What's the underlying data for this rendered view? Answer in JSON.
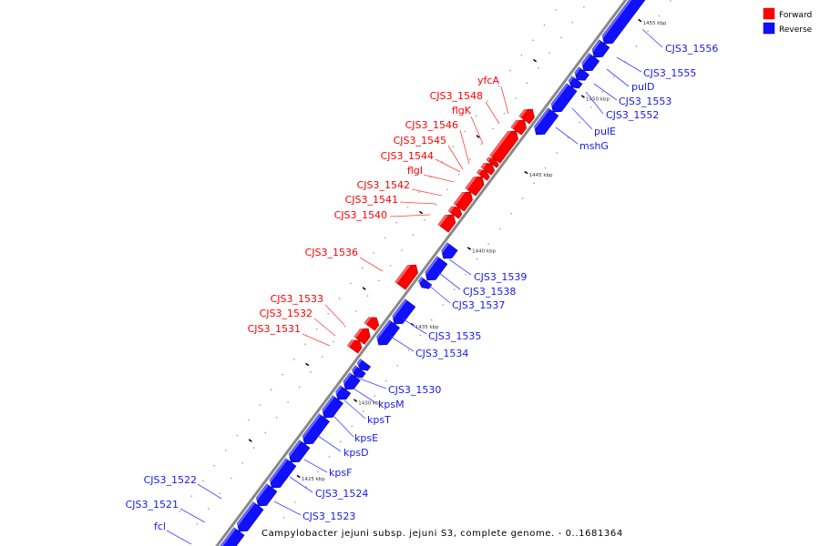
{
  "caption": "Campylobacter jejuni subsp. jejuni S3, complete genome. - 0..1681364",
  "legend": [
    {
      "label": "Forward",
      "color": "#ff0000"
    },
    {
      "label": "Reverse",
      "color": "#1010ff"
    }
  ],
  "ticks": [
    {
      "kbp": 1425,
      "label": "1425 kbp"
    },
    {
      "kbp": 1430,
      "label": "1430 kbp"
    },
    {
      "kbp": 1435,
      "label": "1435 kbp"
    },
    {
      "kbp": 1440,
      "label": "1440 kbp"
    },
    {
      "kbp": 1445,
      "label": "1445 kbp"
    },
    {
      "kbp": 1450,
      "label": "1450 kbp"
    },
    {
      "kbp": 1455,
      "label": "1455 kbp"
    }
  ],
  "genes": [
    {
      "name": "fcl",
      "strand": "reverse",
      "start": 1419.2,
      "end": 1420.81
    },
    {
      "name": "CJS3_1521",
      "strand": "reverse",
      "start": 1420.81,
      "end": 1422.49
    },
    {
      "name": "CJS3_1522",
      "strand": "reverse",
      "start": 1422.49,
      "end": 1423.68
    },
    {
      "name": "CJS3_1523",
      "strand": "reverse",
      "start": 1423.68,
      "end": 1425.36
    },
    {
      "name": "CJS3_1524",
      "strand": "reverse",
      "start": 1425.36,
      "end": 1426.56
    },
    {
      "name": "kpsF",
      "strand": "reverse",
      "start": 1426.56,
      "end": 1428.29
    },
    {
      "name": "kpsD",
      "strand": "reverse",
      "start": 1428.29,
      "end": 1429.49
    },
    {
      "name": "kpsE",
      "strand": "reverse",
      "start": 1429.49,
      "end": 1430.15
    },
    {
      "name": "kpsT",
      "strand": "reverse",
      "start": 1430.15,
      "end": 1430.99
    },
    {
      "name": "kpsM",
      "strand": "reverse",
      "start": 1430.99,
      "end": 1431.47
    },
    {
      "name": "CJS3_1530",
      "strand": "reverse",
      "start": 1431.47,
      "end": 1431.9
    },
    {
      "name": "CJS3_1531",
      "strand": "forward",
      "start": 1432.07,
      "end": 1432.66
    },
    {
      "name": "CJS3_1532",
      "strand": "forward",
      "start": 1432.66,
      "end": 1433.44
    },
    {
      "name": "CJS3_1533",
      "strand": "forward",
      "start": 1433.56,
      "end": 1434.16
    },
    {
      "name": "CJS3_1534",
      "strand": "reverse",
      "start": 1433.08,
      "end": 1434.46
    },
    {
      "name": "CJS3_1535",
      "strand": "reverse",
      "start": 1434.46,
      "end": 1435.84
    },
    {
      "name": "CJS3_1536",
      "strand": "forward",
      "start": 1436.26,
      "end": 1437.63
    },
    {
      "name": "CJS3_1537",
      "strand": "reverse",
      "start": 1436.86,
      "end": 1437.28
    },
    {
      "name": "CJS3_1538",
      "strand": "reverse",
      "start": 1437.34,
      "end": 1438.65
    },
    {
      "name": "CJS3_1539",
      "strand": "reverse",
      "start": 1438.77,
      "end": 1439.55
    },
    {
      "name": "CJS3_1540",
      "strand": "forward",
      "start": 1440.03,
      "end": 1440.93
    },
    {
      "name": "CJS3_1541",
      "strand": "forward",
      "start": 1440.93,
      "end": 1441.41
    },
    {
      "name": "CJS3_1542",
      "strand": "forward",
      "start": 1441.41,
      "end": 1442.43
    },
    {
      "name": "flgI",
      "strand": "forward",
      "start": 1442.43,
      "end": 1443.44
    },
    {
      "name": "CJS3_1544",
      "strand": "forward",
      "start": 1443.44,
      "end": 1443.8
    },
    {
      "name": "CJS3_1545",
      "strand": "forward",
      "start": 1443.8,
      "end": 1444.28
    },
    {
      "name": "CJS3_1546",
      "strand": "forward",
      "start": 1444.28,
      "end": 1444.58
    },
    {
      "name": "flgK",
      "strand": "forward",
      "start": 1444.58,
      "end": 1446.44
    },
    {
      "name": "CJS3_1548",
      "strand": "forward",
      "start": 1446.44,
      "end": 1447.16
    },
    {
      "name": "yfcA",
      "strand": "forward",
      "start": 1447.16,
      "end": 1447.87
    },
    {
      "name": "mshG",
      "strand": "reverse",
      "start": 1446.92,
      "end": 1448.41
    },
    {
      "name": "pulE",
      "strand": "reverse",
      "start": 1448.41,
      "end": 1450.03
    },
    {
      "name": "CJS3_1552",
      "strand": "reverse",
      "start": 1450.03,
      "end": 1450.51
    },
    {
      "name": "CJS3_1553",
      "strand": "reverse",
      "start": 1450.51,
      "end": 1451.11
    },
    {
      "name": "pulD",
      "strand": "reverse",
      "start": 1451.11,
      "end": 1452.01
    },
    {
      "name": "CJS3_1555",
      "strand": "reverse",
      "start": 1452.01,
      "end": 1452.9
    },
    {
      "name": "CJS3_1556",
      "strand": "reverse",
      "start": 1452.9,
      "end": 1456.6
    }
  ]
}
